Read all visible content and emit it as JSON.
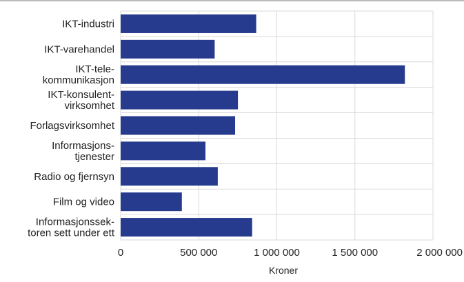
{
  "chart_data": {
    "type": "bar",
    "orientation": "horizontal",
    "categories": [
      [
        "IKT-industri"
      ],
      [
        "IKT-varehandel"
      ],
      [
        "IKT-tele-",
        "kommunikasjon"
      ],
      [
        "IKT-konsulent-",
        "virksomhet"
      ],
      [
        "Forlagsvirksomhet"
      ],
      [
        "Informasjons-",
        "tjenester"
      ],
      [
        "Radio og fjernsyn"
      ],
      [
        "Film og video"
      ],
      [
        "Informasjonssek-",
        "toren sett under ett"
      ]
    ],
    "values": [
      868000,
      602000,
      1820000,
      751000,
      733000,
      543000,
      622000,
      392000,
      842000
    ],
    "xlabel": "Kroner",
    "xlim": [
      0,
      2000000
    ],
    "xticks": [
      0,
      500000,
      1000000,
      1500000,
      2000000
    ],
    "xtick_labels": [
      "0",
      "500 000",
      "1 000 000",
      "1 500 000",
      "2 000 000"
    ],
    "grid": true,
    "bar_color": "#263a8e",
    "grid_color": "#d9d9d9",
    "frame_top_color": "#a6a6a6"
  }
}
